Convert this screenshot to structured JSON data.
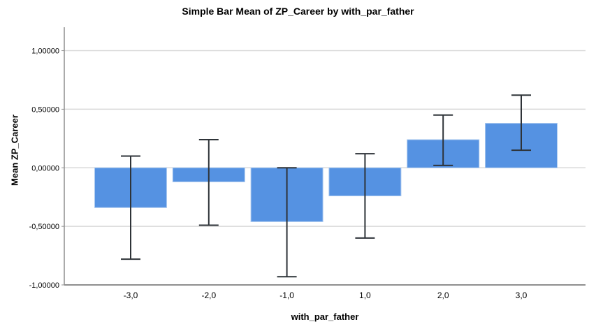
{
  "chart_data": {
    "type": "bar",
    "title": "Simple Bar Mean of ZP_Career by with_par_father",
    "xlabel": "with_par_father",
    "ylabel": "Mean ZP_Career",
    "categories": [
      "-3,0",
      "-2,0",
      "-1,0",
      "1,0",
      "2,0",
      "3,0"
    ],
    "values": [
      -0.34,
      -0.12,
      -0.46,
      -0.24,
      0.24,
      0.38
    ],
    "error_low": [
      -0.78,
      -0.49,
      -0.93,
      -0.6,
      0.02,
      0.15
    ],
    "error_high": [
      0.1,
      0.24,
      0.0,
      0.12,
      0.45,
      0.62
    ],
    "error_bars": true,
    "grid": true,
    "legend": "none",
    "ylim": [
      -1.0,
      1.2
    ],
    "yticks": [
      {
        "value": 1.0,
        "label": "1,00000"
      },
      {
        "value": 0.5,
        "label": "0,50000"
      },
      {
        "value": 0.0,
        "label": "0,00000"
      },
      {
        "value": -0.5,
        "label": "-0,50000"
      },
      {
        "value": -1.0,
        "label": "-1,00000"
      }
    ],
    "colors": {
      "bar": "#5592e2",
      "bar_border": "#a9c8ef",
      "error_bar": "#2e3338",
      "gridline": "#d9d9d9",
      "axis": "#8f8f8f",
      "text": "#000000"
    }
  }
}
